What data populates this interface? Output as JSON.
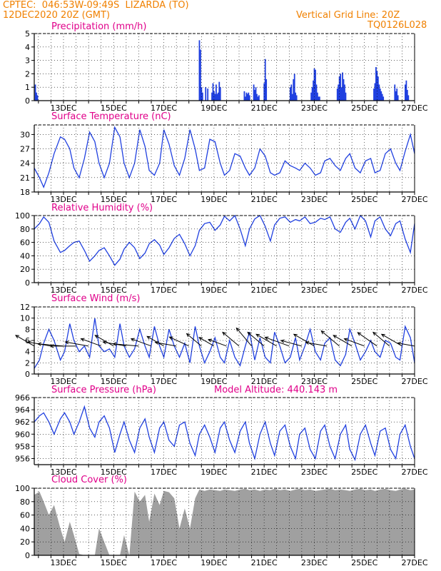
{
  "header": {
    "line1": "CPTEC:  046:53W-09:49S  LIZARDA (TO)",
    "line2": "12DEC2020 20Z (GMT)",
    "grid_note": "Vertical Grid Line: 20Z",
    "code": "TQ0126L028"
  },
  "colors": {
    "header": "#f08000",
    "title": "#e0008a",
    "series": "#2040e0",
    "cloud": "#a0a0a0"
  },
  "x_axis": {
    "start_hour": 0,
    "end_hour": 364,
    "tick_labels": [
      "13DEC",
      "15DEC",
      "17DEC",
      "19DEC",
      "21DEC",
      "23DEC",
      "25DEC",
      "27DEC"
    ],
    "tick_hours": [
      28,
      76,
      124,
      172,
      220,
      268,
      316,
      364
    ]
  },
  "chart_data": [
    {
      "type": "bar",
      "title": "Precipitation (mm/h)",
      "ylim": [
        0,
        5
      ],
      "yticks": [
        0,
        1,
        2,
        3,
        4,
        5
      ],
      "x_hours": [
        1,
        2,
        3,
        158,
        159,
        160,
        161,
        164,
        166,
        170,
        171,
        172,
        173,
        174,
        175,
        176,
        177,
        178,
        201,
        202,
        203,
        204,
        205,
        206,
        210,
        211,
        212,
        213,
        214,
        215,
        220,
        221,
        222,
        245,
        246,
        247,
        248,
        249,
        250,
        251,
        265,
        266,
        267,
        268,
        269,
        270,
        271,
        272,
        273,
        290,
        291,
        292,
        293,
        294,
        295,
        296,
        297,
        298,
        325,
        326,
        327,
        328,
        329,
        330,
        331,
        332,
        333,
        334,
        345,
        346,
        347,
        348,
        355,
        356,
        357,
        358
      ],
      "values": [
        1.2,
        0.6,
        0.4,
        4.5,
        3.8,
        1.0,
        0.6,
        1.0,
        0.9,
        0.6,
        1.3,
        0.7,
        0.5,
        1.2,
        0.5,
        0.6,
        1.4,
        1.0,
        0.7,
        0.3,
        0.6,
        0.5,
        0.6,
        0.4,
        1.2,
        0.8,
        1.0,
        0.5,
        0.3,
        0.4,
        1.3,
        3.1,
        1.6,
        1.0,
        1.2,
        0.5,
        1.6,
        2.0,
        0.6,
        0.4,
        0.6,
        1.0,
        1.5,
        2.4,
        2.3,
        1.2,
        0.6,
        0.3,
        0.3,
        0.9,
        1.2,
        1.8,
        2.0,
        1.0,
        2.1,
        1.6,
        1.2,
        0.6,
        0.9,
        1.3,
        2.5,
        2.2,
        1.8,
        1.2,
        0.9,
        0.7,
        0.5,
        0.3,
        1.2,
        0.7,
        0.9,
        0.4,
        1.2,
        1.5,
        0.8,
        0.4
      ]
    },
    {
      "type": "line",
      "title": "Surface Temperature (nC)",
      "ylim": [
        18,
        32
      ],
      "yticks": [
        18,
        21,
        24,
        27,
        30
      ],
      "x_hours": [
        0,
        5,
        9,
        14,
        19,
        25,
        29,
        34,
        38,
        43,
        48,
        53,
        58,
        62,
        67,
        72,
        77,
        82,
        86,
        91,
        96,
        101,
        106,
        110,
        115,
        120,
        124,
        129,
        134,
        139,
        144,
        149,
        154,
        158,
        163,
        168,
        173,
        178,
        182,
        187,
        192,
        197,
        202,
        206,
        211,
        216,
        221,
        226,
        230,
        235,
        240,
        245,
        250,
        254,
        259,
        264,
        269,
        274,
        278,
        283,
        288,
        293,
        298,
        302,
        307,
        312,
        317,
        322,
        326,
        331,
        336,
        341,
        346,
        350,
        355,
        360,
        364
      ],
      "values": [
        23.0,
        21.0,
        19.0,
        22.0,
        26.0,
        29.5,
        29.0,
        27.0,
        23.0,
        21.0,
        25.0,
        30.5,
        28.5,
        24.0,
        21.0,
        24.0,
        31.5,
        29.5,
        24.0,
        21.0,
        24.0,
        31.0,
        27.5,
        22.5,
        21.5,
        24.0,
        31.0,
        28.0,
        23.5,
        21.5,
        25.0,
        31.0,
        27.0,
        22.5,
        23.0,
        29.0,
        28.5,
        24.0,
        21.5,
        22.5,
        26.0,
        25.5,
        23.0,
        21.5,
        23.0,
        27.0,
        25.5,
        22.0,
        21.5,
        22.0,
        24.5,
        23.5,
        23.0,
        22.5,
        24.0,
        23.0,
        21.5,
        22.0,
        24.5,
        25.0,
        23.5,
        22.5,
        25.0,
        26.0,
        23.0,
        22.0,
        24.5,
        25.0,
        22.0,
        22.5,
        26.0,
        27.0,
        24.0,
        22.5,
        26.5,
        30.0,
        26.0
      ]
    },
    {
      "type": "line",
      "title": "Relative Humidity (%)",
      "ylim": [
        0,
        100
      ],
      "yticks": [
        0,
        20,
        40,
        60,
        80,
        100
      ],
      "x_hours": [
        0,
        5,
        9,
        14,
        19,
        25,
        29,
        34,
        38,
        43,
        48,
        53,
        58,
        62,
        67,
        72,
        77,
        82,
        86,
        91,
        96,
        101,
        106,
        110,
        115,
        120,
        124,
        129,
        134,
        139,
        144,
        149,
        154,
        158,
        163,
        168,
        173,
        178,
        182,
        187,
        192,
        197,
        202,
        206,
        211,
        216,
        221,
        226,
        230,
        235,
        240,
        245,
        250,
        254,
        259,
        264,
        269,
        274,
        278,
        283,
        288,
        293,
        298,
        302,
        307,
        312,
        317,
        322,
        326,
        331,
        336,
        341,
        346,
        350,
        355,
        360,
        364
      ],
      "values": [
        80.0,
        88.0,
        98.0,
        90.0,
        62.0,
        45.0,
        48.0,
        55.0,
        60.0,
        62.0,
        48.0,
        32.0,
        40.0,
        48.0,
        52.0,
        40.0,
        26.0,
        35.0,
        50.0,
        60.0,
        52.0,
        36.0,
        44.0,
        58.0,
        64.0,
        56.0,
        42.0,
        52.0,
        66.0,
        72.0,
        58.0,
        40.0,
        55.0,
        78.0,
        88.0,
        90.0,
        78.0,
        86.0,
        99.0,
        92.0,
        100.0,
        80.0,
        55.0,
        80.0,
        95.0,
        100.0,
        84.0,
        62.0,
        86.0,
        96.0,
        98.0,
        90.0,
        94.0,
        92.0,
        98.0,
        88.0,
        90.0,
        96.0,
        94.0,
        98.0,
        80.0,
        75.0,
        90.0,
        96.0,
        80.0,
        100.0,
        92.0,
        68.0,
        92.0,
        98.0,
        80.0,
        70.0,
        88.0,
        92.0,
        65.0,
        45.0,
        88.0
      ]
    },
    {
      "type": "line",
      "title": "Surface Wind (m/s)",
      "ylim": [
        0,
        12
      ],
      "yticks": [
        0,
        2,
        4,
        6,
        8,
        10,
        12
      ],
      "x_hours": [
        0,
        5,
        9,
        14,
        19,
        25,
        29,
        34,
        38,
        43,
        48,
        53,
        58,
        62,
        67,
        72,
        77,
        82,
        86,
        91,
        96,
        101,
        106,
        110,
        115,
        120,
        124,
        129,
        134,
        139,
        144,
        149,
        154,
        158,
        163,
        168,
        173,
        178,
        182,
        187,
        192,
        197,
        202,
        206,
        211,
        216,
        221,
        226,
        230,
        235,
        240,
        245,
        250,
        254,
        259,
        264,
        269,
        274,
        278,
        283,
        288,
        293,
        298,
        302,
        307,
        312,
        317,
        322,
        326,
        331,
        336,
        341,
        346,
        350,
        355,
        360,
        364
      ],
      "values": [
        1.0,
        2.5,
        5.5,
        8.0,
        6.0,
        2.5,
        4.0,
        9.0,
        6.0,
        4.0,
        5.0,
        3.0,
        10.0,
        5.0,
        4.0,
        4.5,
        3.0,
        9.0,
        5.0,
        3.0,
        4.5,
        8.0,
        5.0,
        3.0,
        8.5,
        5.0,
        3.0,
        8.0,
        5.0,
        3.0,
        5.5,
        2.0,
        8.5,
        5.0,
        2.0,
        4.0,
        6.5,
        3.0,
        2.0,
        6.0,
        3.0,
        1.5,
        5.0,
        7.5,
        2.5,
        6.5,
        3.0,
        2.0,
        7.5,
        5.0,
        2.0,
        3.0,
        6.5,
        2.5,
        5.0,
        8.0,
        4.0,
        2.5,
        5.5,
        6.5,
        2.5,
        1.5,
        3.5,
        8.0,
        5.5,
        2.5,
        4.0,
        6.0,
        4.0,
        3.0,
        6.0,
        5.5,
        3.0,
        2.5,
        8.5,
        6.5,
        2.0
      ]
    },
    {
      "type": "line",
      "title": "Surface Pressure (hPa)",
      "annotation": "Model Altitude: 440.143 m",
      "ylim": [
        955,
        966
      ],
      "yticks": [
        956,
        958,
        960,
        962,
        964,
        966
      ],
      "x_hours": [
        0,
        5,
        9,
        14,
        19,
        25,
        29,
        34,
        38,
        43,
        48,
        53,
        58,
        62,
        67,
        72,
        77,
        82,
        86,
        91,
        96,
        101,
        106,
        110,
        115,
        120,
        124,
        129,
        134,
        139,
        144,
        149,
        154,
        158,
        163,
        168,
        173,
        178,
        182,
        187,
        192,
        197,
        202,
        206,
        211,
        216,
        221,
        226,
        230,
        235,
        240,
        245,
        250,
        254,
        259,
        264,
        269,
        274,
        278,
        283,
        288,
        293,
        298,
        302,
        307,
        312,
        317,
        322,
        326,
        331,
        336,
        341,
        346,
        350,
        355,
        360,
        364
      ],
      "values": [
        962.0,
        963.0,
        963.5,
        962.0,
        960.0,
        962.5,
        963.5,
        962.0,
        960.0,
        962.0,
        964.5,
        961.0,
        959.5,
        962.0,
        963.0,
        961.0,
        957.0,
        960.0,
        962.0,
        959.0,
        957.0,
        961.0,
        962.5,
        959.5,
        957.0,
        961.0,
        962.0,
        959.0,
        958.0,
        961.5,
        962.0,
        958.5,
        956.5,
        960.0,
        961.5,
        959.5,
        957.0,
        961.0,
        962.0,
        959.0,
        957.0,
        960.5,
        962.0,
        958.5,
        956.0,
        960.0,
        962.0,
        958.5,
        956.5,
        960.5,
        961.5,
        958.0,
        956.0,
        960.0,
        961.0,
        957.5,
        956.0,
        960.5,
        961.5,
        958.0,
        956.0,
        960.0,
        961.5,
        957.5,
        955.8,
        960.0,
        961.5,
        958.5,
        956.5,
        960.5,
        961.0,
        957.5,
        956.0,
        960.0,
        961.5,
        958.0,
        956.0
      ]
    },
    {
      "type": "area",
      "title": "Cloud Cover (%)",
      "ylim": [
        0,
        100
      ],
      "yticks": [
        0,
        20,
        40,
        60,
        80,
        100
      ],
      "x_hours": [
        0,
        5,
        9,
        14,
        19,
        25,
        29,
        34,
        38,
        43,
        48,
        53,
        58,
        62,
        67,
        72,
        77,
        82,
        86,
        91,
        96,
        101,
        106,
        110,
        115,
        120,
        124,
        129,
        134,
        139,
        144,
        149,
        154,
        158,
        163,
        168,
        173,
        178,
        182,
        187,
        192,
        197,
        202,
        206,
        211,
        216,
        221,
        226,
        230,
        235,
        240,
        245,
        250,
        254,
        259,
        264,
        269,
        274,
        278,
        283,
        288,
        293,
        298,
        302,
        307,
        312,
        317,
        322,
        326,
        331,
        336,
        341,
        346,
        350,
        355,
        360,
        364
      ],
      "values": [
        90.0,
        95.0,
        80.0,
        60.0,
        75.0,
        40.0,
        20.0,
        50.0,
        30.0,
        2.0,
        0.0,
        0.0,
        0.0,
        40.0,
        20.0,
        0.0,
        0.0,
        0.0,
        30.0,
        0.0,
        95.0,
        80.0,
        90.0,
        50.0,
        92.0,
        75.0,
        96.0,
        94.0,
        85.0,
        40.0,
        70.0,
        40.0,
        85.0,
        98.0,
        96.0,
        98.0,
        97.0,
        96.0,
        98.0,
        97.0,
        96.0,
        98.0,
        99.0,
        97.0,
        98.0,
        96.0,
        98.0,
        97.0,
        99.0,
        97.0,
        98.0,
        96.0,
        98.0,
        99.0,
        97.0,
        98.0,
        96.0,
        97.0,
        98.0,
        99.0,
        97.0,
        98.0,
        97.0,
        96.0,
        98.0,
        99.0,
        97.0,
        98.0,
        96.0,
        98.0,
        99.0,
        97.0,
        96.0,
        98.0,
        99.0,
        97.0,
        98.0
      ]
    },
    {
      "type": "wind_vectors",
      "title": "Surface Wind (m/s)",
      "x_hours": [
        0,
        16,
        28,
        40,
        52,
        64,
        76,
        88,
        100,
        112,
        124,
        136,
        148,
        160,
        172,
        184,
        196,
        208,
        220,
        232,
        244,
        256,
        268,
        280,
        292,
        304,
        316,
        328,
        340,
        352,
        364
      ],
      "directions_deg": [
        120,
        100,
        95,
        90,
        100,
        110,
        120,
        100,
        95,
        110,
        120,
        100,
        115,
        130,
        120,
        110,
        130,
        140,
        130,
        120,
        110,
        105,
        120,
        100,
        130,
        120,
        110,
        125,
        130,
        120,
        100
      ],
      "speeds": [
        5.0,
        5.5,
        6.0,
        6.0,
        5.5,
        5.0,
        5.0,
        5.5,
        6.0,
        5.0,
        4.5,
        5.0,
        5.0,
        4.5,
        4.0,
        4.5,
        5.0,
        5.5,
        5.0,
        5.5,
        6.0,
        5.0,
        5.5,
        5.0,
        5.5,
        5.0,
        5.0,
        5.5,
        5.0,
        5.5,
        4.0
      ]
    }
  ]
}
